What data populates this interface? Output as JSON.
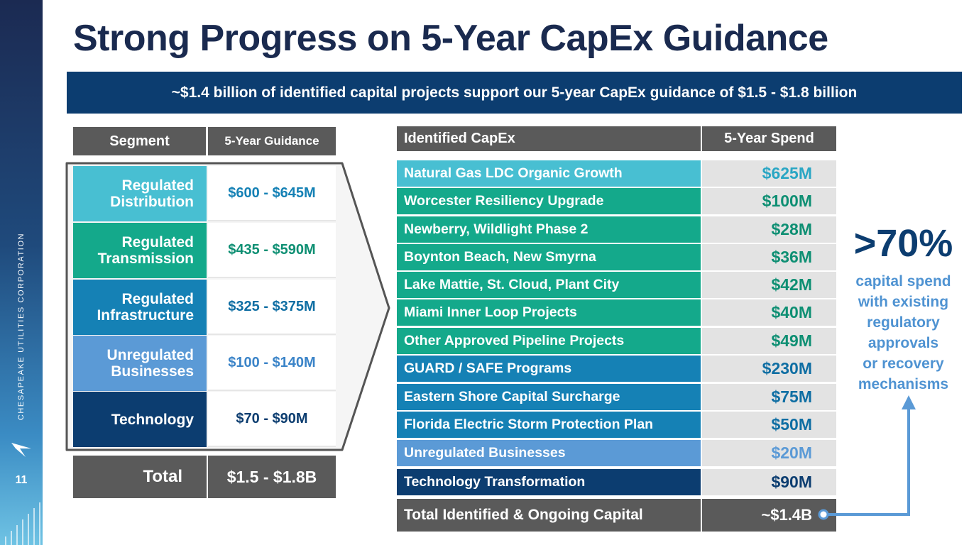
{
  "title": "Strong Progress on 5-Year CapEx Guidance",
  "subtitle": "~$1.4 billion of identified capital projects support our 5-year CapEx guidance of $1.5 - $1.8 billion",
  "sidebar": {
    "company": "CHESAPEAKE UTILITIES CORPORATION",
    "page_number": "11",
    "logo_icon": "bird-logo-icon"
  },
  "colors": {
    "navy": "#0c3d70",
    "gray_header": "#5a5a5a",
    "cyan": "#48bfd2",
    "teal": "#14a98b",
    "blue": "#1581b5",
    "light_blue": "#5b9ad6",
    "dark_navy": "#0c3d70",
    "callout_blue": "#4f93d2"
  },
  "guidance_table": {
    "headers": [
      "Segment",
      "5-Year Guidance"
    ],
    "rows": [
      {
        "segment": "Regulated Distribution",
        "guidance": "$600 - $645M",
        "color": "#48bfd2",
        "text_color": "#1581b5"
      },
      {
        "segment": "Regulated Transmission",
        "guidance": "$435 - $590M",
        "color": "#14a98b",
        "text_color": "#0e8f73"
      },
      {
        "segment": "Regulated Infrastructure",
        "guidance": "$325 - $375M",
        "color": "#1581b5",
        "text_color": "#0f6ea3"
      },
      {
        "segment": "Unregulated Businesses",
        "guidance": "$100 - $140M",
        "color": "#5b9ad6",
        "text_color": "#3b84c8"
      },
      {
        "segment": "Technology",
        "guidance": "$70 - $90M",
        "color": "#0c3d70",
        "text_color": "#0c3d70"
      }
    ],
    "total_label": "Total",
    "total_value": "$1.5 - $1.8B"
  },
  "capex_table": {
    "headers": [
      "Identified CapEx",
      "5-Year Spend"
    ],
    "rows": [
      {
        "project": "Natural Gas LDC Organic Growth",
        "spend": "$625M",
        "color": "#48bfd2",
        "text_color": "#2aa6c4"
      },
      {
        "project": "Worcester Resiliency Upgrade",
        "spend": "$100M",
        "color": "#14a98b",
        "text_color": "#0e8f73"
      },
      {
        "project": "Newberry, Wildlight Phase 2",
        "spend": "$28M",
        "color": "#14a98b",
        "text_color": "#0e8f73"
      },
      {
        "project": "Boynton Beach, New Smyrna",
        "spend": "$36M",
        "color": "#14a98b",
        "text_color": "#0e8f73"
      },
      {
        "project": "Lake Mattie, St. Cloud, Plant City",
        "spend": "$42M",
        "color": "#14a98b",
        "text_color": "#0e8f73"
      },
      {
        "project": "Miami Inner Loop Projects",
        "spend": "$40M",
        "color": "#14a98b",
        "text_color": "#0e8f73"
      },
      {
        "project": "Other Approved Pipeline Projects",
        "spend": "$49M",
        "color": "#14a98b",
        "text_color": "#0e8f73"
      },
      {
        "project": "GUARD / SAFE Programs",
        "spend": "$230M",
        "color": "#1581b5",
        "text_color": "#0f6ea3"
      },
      {
        "project": "Eastern Shore Capital Surcharge",
        "spend": "$75M",
        "color": "#1581b5",
        "text_color": "#0f6ea3"
      },
      {
        "project": "Florida Electric Storm Protection Plan",
        "spend": "$50M",
        "color": "#1581b5",
        "text_color": "#0f6ea3"
      },
      {
        "project": "Unregulated Businesses",
        "spend": "$20M",
        "color": "#5b9ad6",
        "text_color": "#5b9ad6"
      },
      {
        "project": "Technology Transformation",
        "spend": "$90M",
        "color": "#0c3d70",
        "text_color": "#0c3d70"
      }
    ],
    "total_label": "Total Identified & Ongoing Capital",
    "total_value": "~$1.4B"
  },
  "callout": {
    "percent": ">70%",
    "text": [
      "capital spend",
      "with existing",
      "regulatory",
      "approvals",
      "or recovery",
      "mechanisms"
    ]
  }
}
